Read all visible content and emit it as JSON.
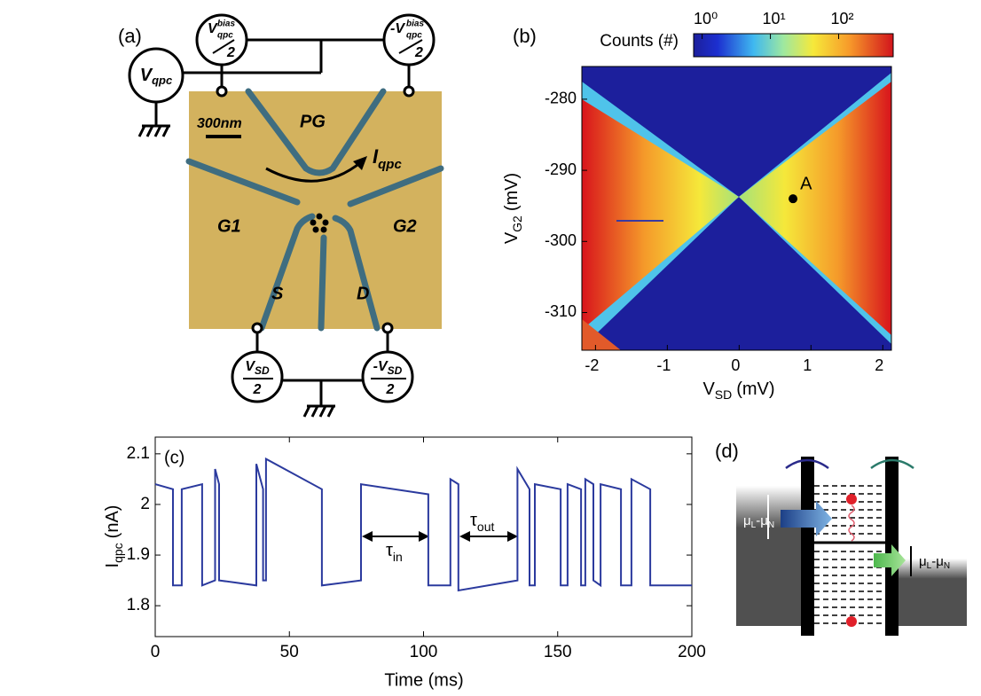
{
  "panel_a": {
    "label": "(a)",
    "v_qpc": {
      "main": "V",
      "sub": "qpc"
    },
    "bias_left": {
      "main": "V",
      "sup": "bias",
      "sub": "qpc",
      "den": "2"
    },
    "bias_right": {
      "main": "-V",
      "sup": "bias",
      "sub": "qpc",
      "den": "2"
    },
    "scale": "300nm",
    "gates": {
      "pg": "PG",
      "g1": "G1",
      "g2": "G2",
      "s": "S",
      "d": "D"
    },
    "current": {
      "main": "I",
      "sub": "qpc"
    },
    "sd_left": {
      "main": "V",
      "sub": "SD",
      "den": "2"
    },
    "sd_right": {
      "main": "-V",
      "sub": "SD",
      "den": "2"
    }
  },
  "panel_d": {
    "label": "(d)",
    "left_level": {
      "a": "μ",
      "a_sub": "L",
      "b": "-μ",
      "b_sub": "N"
    },
    "right_level": {
      "a": "μ",
      "a_sub": "L",
      "b": "-μ",
      "b_sub": "N"
    }
  },
  "chart_data": [
    {
      "type": "heatmap",
      "panel_label": "(b)",
      "xlabel": {
        "main": "V",
        "sub": "SD",
        "unit": "(mV)"
      },
      "ylabel": {
        "main": "V",
        "sub": "G2",
        "unit": "(mV)"
      },
      "xlim": [
        -2.19,
        2.12
      ],
      "ylim": [
        -315.3,
        -275.4
      ],
      "xticks": [
        -2,
        -1,
        0,
        1,
        2
      ],
      "yticks": [
        -280,
        -290,
        -300,
        -310
      ],
      "colorbar": {
        "label": "Counts (#)",
        "log": true,
        "zlim": [
          0.75,
          630
        ],
        "ticks": [
          {
            "value": 1,
            "label": "10⁰"
          },
          {
            "value": 10,
            "label": "10¹"
          },
          {
            "value": 100,
            "label": "10²"
          }
        ]
      },
      "annotations": [
        {
          "text": "A",
          "x": 0.75,
          "y": -294
        }
      ]
    },
    {
      "type": "line",
      "panel_label": "(c)",
      "xlabel": "Time (ms)",
      "ylabel": {
        "main": "I",
        "sub": "qpc",
        "unit": "(nA)"
      },
      "color": "#2b3a9e",
      "xlim": [
        0,
        200
      ],
      "ylim": [
        1.739,
        2.133
      ],
      "xticks": [
        0,
        50,
        100,
        150,
        200
      ],
      "yticks": [
        1.8,
        1.9,
        2,
        2.1
      ],
      "annotations": [
        {
          "main": "τ",
          "sub": "in"
        },
        {
          "main": "τ",
          "sub": "out"
        }
      ],
      "x": [
        0,
        6.6,
        6.6,
        9.9,
        9.9,
        17.5,
        17.5,
        22.3,
        22.3,
        23.8,
        23.8,
        37.7,
        37.7,
        40.2,
        40.2,
        41.3,
        41.3,
        62.1,
        62.1,
        76.7,
        76.7,
        101.8,
        101.8,
        110,
        110,
        113,
        113,
        135,
        135,
        139.5,
        139.5,
        141.5,
        141.5,
        151.1,
        151.1,
        153.7,
        153.7,
        158.7,
        158.7,
        160.3,
        160.3,
        163.3,
        163.3,
        166,
        166,
        173.6,
        173.6,
        177.5,
        177.5,
        184.5,
        184.5,
        200
      ],
      "values": [
        2.04,
        2.03,
        1.84,
        1.84,
        2.03,
        2.04,
        1.84,
        1.85,
        2.07,
        2.04,
        1.85,
        1.84,
        2.08,
        2.03,
        1.85,
        1.85,
        2.09,
        2.03,
        1.84,
        1.85,
        2.04,
        2.02,
        1.84,
        1.84,
        2.05,
        2.04,
        1.83,
        1.85,
        2.07,
        2.03,
        1.84,
        1.84,
        2.04,
        2.03,
        1.84,
        1.84,
        2.04,
        2.03,
        1.84,
        1.84,
        2.05,
        2.04,
        1.85,
        1.84,
        2.04,
        2.03,
        1.84,
        1.84,
        2.05,
        2.03,
        1.84,
        1.84
      ]
    }
  ]
}
